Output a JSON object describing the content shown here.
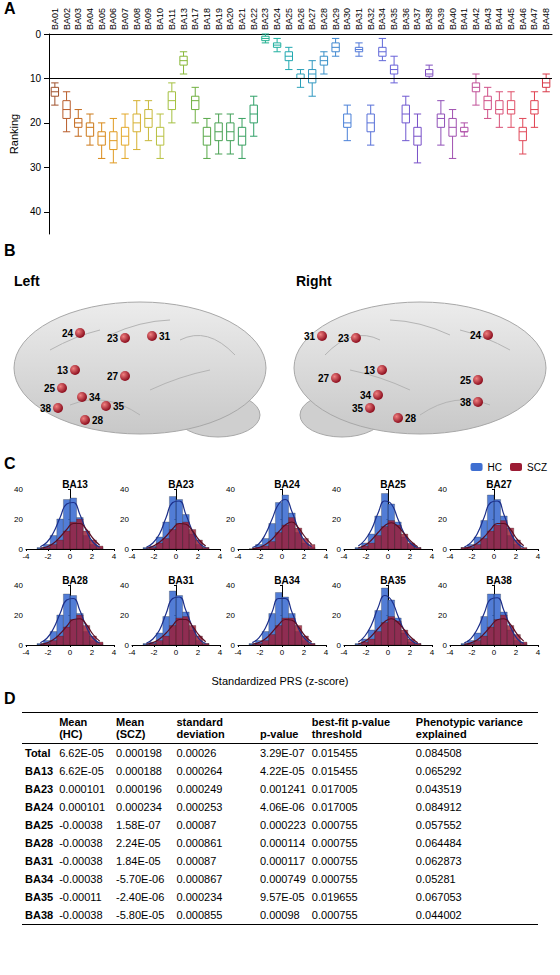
{
  "chart_data": [
    {
      "panel": "A",
      "type": "boxplot",
      "y_label": "Ranking",
      "categories": [
        "BA01",
        "BA02",
        "BA03",
        "BA04",
        "BA05",
        "BA06",
        "BA07",
        "BA08",
        "BA09",
        "BA10",
        "BA11",
        "BA13",
        "BA17",
        "BA18",
        "BA19",
        "BA20",
        "BA21",
        "BA22",
        "BA23",
        "BA24",
        "BA25",
        "BA26",
        "BA27",
        "BA28",
        "BA29",
        "BA30",
        "BA31",
        "BA32",
        "BA34",
        "BA35",
        "BA36",
        "BA37",
        "BA38",
        "BA39",
        "BA40",
        "BA41",
        "BA42",
        "BA43",
        "BA44",
        "BA45",
        "BA46",
        "BA47",
        "BA48"
      ],
      "boxes": [
        [
          11,
          12,
          13,
          14,
          16
        ],
        [
          13,
          15,
          17,
          19,
          22
        ],
        [
          17,
          19,
          20,
          21,
          23
        ],
        [
          18,
          20,
          21,
          23,
          25
        ],
        [
          20,
          22,
          23,
          25,
          28
        ],
        [
          19,
          22,
          24,
          26,
          29
        ],
        [
          18,
          21,
          23,
          25,
          28
        ],
        [
          15,
          18,
          20,
          22,
          26
        ],
        [
          15,
          17,
          19,
          21,
          24
        ],
        [
          18,
          21,
          23,
          25,
          28
        ],
        [
          11,
          13,
          15,
          17,
          20
        ],
        [
          4,
          5,
          6,
          7,
          9
        ],
        [
          12,
          14,
          15,
          17,
          20
        ],
        [
          19,
          21,
          23,
          25,
          28
        ],
        [
          18,
          20,
          22,
          24,
          27
        ],
        [
          18,
          20,
          22,
          24,
          27
        ],
        [
          19,
          21,
          23,
          25,
          28
        ],
        [
          14,
          16,
          18,
          20,
          23
        ],
        [
          0,
          0.5,
          1,
          1.5,
          2
        ],
        [
          1,
          2,
          2.5,
          3,
          4
        ],
        [
          3,
          4,
          5,
          6,
          8
        ],
        [
          8,
          9,
          10,
          10,
          12
        ],
        [
          6,
          8,
          9,
          11,
          14
        ],
        [
          4,
          5,
          6,
          7,
          9
        ],
        [
          1,
          2,
          3,
          4,
          5
        ],
        [
          16,
          18,
          20,
          21,
          24
        ],
        [
          2,
          3,
          3.5,
          4,
          5
        ],
        [
          16,
          18,
          20,
          22,
          25
        ],
        [
          1,
          3,
          4,
          5,
          6
        ],
        [
          5,
          7,
          8,
          9,
          11
        ],
        [
          14,
          16,
          18,
          20,
          24
        ],
        [
          18,
          21,
          23,
          25,
          29
        ],
        [
          7,
          8,
          9,
          9.5,
          10
        ],
        [
          15,
          18,
          19,
          21,
          25
        ],
        [
          17,
          19,
          21,
          23,
          28
        ],
        [
          20,
          21,
          22,
          22,
          23
        ],
        [
          9,
          11,
          12,
          13,
          16
        ],
        [
          12,
          14,
          15,
          17,
          19
        ],
        [
          13,
          15,
          17,
          18,
          21
        ],
        [
          13,
          15,
          17,
          18,
          21
        ],
        [
          19,
          21,
          22,
          24,
          27
        ],
        [
          13,
          15,
          17,
          18,
          21
        ],
        [
          9,
          10,
          11,
          12,
          13
        ]
      ],
      "colors": [
        "#a0522d",
        "#b85c2a",
        "#c46a1e",
        "#cc7a1a",
        "#d98a1a",
        "#e09a20",
        "#e3a828",
        "#d6b030",
        "#c8b83a",
        "#b8c040",
        "#a4c040",
        "#88b838",
        "#70b040",
        "#58a848",
        "#48a050",
        "#40a058",
        "#38a060",
        "#30a068",
        "#20b090",
        "#20b0a0",
        "#20a8b0",
        "#2aa0b8",
        "#3098c0",
        "#3890c8",
        "#4088d0",
        "#4a80d8",
        "#5078d8",
        "#5870d8",
        "#6068d8",
        "#6860d8",
        "#7058d0",
        "#7850c8",
        "#8050c0",
        "#9050b8",
        "#a050b0",
        "#b050a8",
        "#c05098",
        "#d05088",
        "#d85078",
        "#e05068",
        "#e04858",
        "#e04050",
        "#d83848"
      ],
      "ylim": [
        0,
        45
      ],
      "yticks": [
        0,
        10,
        20,
        30,
        40
      ],
      "hline": 10,
      "grid": false
    },
    {
      "panel": "C",
      "type": "histogram",
      "x_label": "Standardized PRS (z-score)",
      "bins": [
        -3,
        -2.4,
        -1.8,
        -1.2,
        -0.6,
        0,
        0.6,
        1.2,
        1.8,
        2.4,
        3
      ],
      "xlim": [
        -4,
        4
      ],
      "xticks": [
        -4,
        -2,
        0,
        2,
        4
      ],
      "ylim": [
        0,
        40
      ],
      "yticks": [
        0,
        20,
        40
      ],
      "legend": "top-right",
      "groups": [
        {
          "name": "HC",
          "color": "#3f6fd1"
        },
        {
          "name": "SCZ",
          "color": "#9c1c34"
        }
      ],
      "panels": [
        {
          "title": "BA13",
          "counts": [
            [
              1,
              3,
              9,
              20,
              33,
              34,
              21,
              9,
              3,
              1
            ],
            [
              0,
              1,
              3,
              6,
              12,
              18,
              20,
              12,
              6,
              2
            ]
          ],
          "fits": [
            [
              1.5,
              4.5,
              11,
              21,
              30,
              31,
              23,
              12,
              4.5,
              1.2
            ],
            [
              0.4,
              1.5,
              3.8,
              8,
              13,
              17,
              17,
              13,
              7,
              2.5
            ]
          ]
        },
        {
          "title": "BA23",
          "counts": [
            [
              1,
              2,
              8,
              18,
              35,
              33,
              23,
              10,
              3,
              1
            ],
            [
              0,
              1,
              4,
              7,
              13,
              17,
              18,
              13,
              6,
              1
            ]
          ],
          "fits": [
            [
              1.2,
              4,
              10,
              21,
              31,
              32,
              23,
              12,
              4,
              1
            ],
            [
              0.5,
              1.8,
              4.5,
              8.5,
              13.5,
              17,
              16.5,
              12,
              6,
              2
            ]
          ]
        },
        {
          "title": "BA24",
          "counts": [
            [
              0,
              3,
              7,
              17,
              31,
              36,
              24,
              11,
              4,
              1
            ],
            [
              0,
              1,
              2,
              5,
              11,
              16,
              21,
              14,
              7,
              3
            ]
          ],
          "fits": [
            [
              1,
              3.5,
              10,
              20,
              30,
              33,
              25,
              13,
              5,
              1.5
            ],
            [
              0.3,
              1,
              3,
              6.5,
              11.5,
              16,
              18,
              14,
              8,
              3
            ]
          ]
        },
        {
          "title": "BA25",
          "counts": [
            [
              1,
              4,
              10,
              22,
              37,
              30,
              18,
              8,
              3,
              1
            ],
            [
              0,
              2,
              4,
              9,
              15,
              19,
              16,
              10,
              4,
              1
            ]
          ],
          "fits": [
            [
              2,
              6,
              13,
              24,
              32,
              30,
              20,
              10,
              3.5,
              1
            ],
            [
              0.8,
              2.5,
              6,
              11,
              15.5,
              17.5,
              15,
              10,
              5,
              1.5
            ]
          ]
        },
        {
          "title": "BA27",
          "counts": [
            [
              1,
              3,
              8,
              19,
              36,
              33,
              22,
              9,
              3,
              0
            ],
            [
              1,
              1,
              3,
              7,
              12,
              16,
              19,
              14,
              6,
              1
            ]
          ],
          "fits": [
            [
              1.3,
              4.2,
              10.5,
              21,
              31,
              32,
              23,
              11,
              4,
              1
            ],
            [
              0.5,
              1.6,
              4,
              8,
              13,
              17,
              17,
              13,
              6.5,
              2.2
            ]
          ]
        },
        {
          "title": "BA28",
          "counts": [
            [
              1,
              3,
              9,
              20,
              34,
              33,
              21,
              9,
              3,
              1
            ],
            [
              0,
              1,
              3,
              6,
              12,
              17,
              20,
              13,
              6,
              2
            ]
          ],
          "fits": [
            [
              1.5,
              4.5,
              11,
              21,
              30,
              31,
              23,
              12,
              4.5,
              1.2
            ],
            [
              0.4,
              1.4,
              3.6,
              7.5,
              12.5,
              17,
              17.5,
              13.5,
              7,
              2.5
            ]
          ]
        },
        {
          "title": "BA31",
          "counts": [
            [
              1,
              2,
              8,
              19,
              36,
              33,
              22,
              10,
              3,
              1
            ],
            [
              0,
              1,
              3,
              6,
              13,
              18,
              19,
              13,
              6,
              1
            ]
          ],
          "fits": [
            [
              1.2,
              4,
              10,
              21,
              31,
              32,
              23,
              12,
              4,
              1
            ],
            [
              0.5,
              1.6,
              4,
              8,
              13,
              17,
              17,
              12.5,
              6.5,
              2.2
            ]
          ]
        },
        {
          "title": "BA34",
          "counts": [
            [
              1,
              3,
              9,
              21,
              35,
              32,
              21,
              9,
              3,
              1
            ],
            [
              0,
              1,
              3,
              7,
              13,
              18,
              18,
              13,
              6,
              1
            ]
          ],
          "fits": [
            [
              1.6,
              4.8,
              11.5,
              22,
              31,
              31,
              22,
              11,
              4,
              1
            ],
            [
              0.5,
              1.7,
              4.2,
              8.5,
              13.5,
              17,
              16.5,
              12,
              6,
              2
            ]
          ]
        },
        {
          "title": "BA35",
          "counts": [
            [
              1,
              4,
              10,
              23,
              38,
              30,
              18,
              8,
              2,
              1
            ],
            [
              0,
              2,
              4,
              9,
              15,
              19,
              16,
              10,
              4,
              1
            ]
          ],
          "fits": [
            [
              2,
              6,
              13.5,
              25,
              33,
              30,
              19.5,
              9.5,
              3.2,
              0.9
            ],
            [
              0.8,
              2.5,
              6,
              11,
              15.5,
              17.5,
              15,
              10,
              5,
              1.5
            ]
          ]
        },
        {
          "title": "BA38",
          "counts": [
            [
              1,
              3,
              8,
              19,
              34,
              34,
              22,
              10,
              3,
              1
            ],
            [
              0,
              1,
              3,
              6,
              12,
              17,
              20,
              13,
              7,
              2
            ]
          ],
          "fits": [
            [
              1.4,
              4.3,
              10.8,
              21,
              30.5,
              31.5,
              23,
              12,
              4.3,
              1.1
            ],
            [
              0.4,
              1.4,
              3.5,
              7.5,
              12.5,
              16.8,
              17.5,
              13.8,
              7.2,
              2.6
            ]
          ]
        }
      ]
    }
  ],
  "brain_figure": {
    "panel": "B",
    "hemispheres": [
      {
        "title": "Left",
        "regions": [
          "24",
          "23",
          "31",
          "13",
          "25",
          "34",
          "27",
          "38",
          "28",
          "35"
        ]
      },
      {
        "title": "Right",
        "regions": [
          "31",
          "23",
          "24",
          "13",
          "27",
          "34",
          "25",
          "35",
          "28",
          "38"
        ]
      }
    ]
  },
  "table": {
    "panel": "D",
    "header": [
      "Mean (HC)",
      "Mean (SCZ)",
      "standard deviation",
      "p-value",
      "best-fit p-value threshold",
      "Phenotypic variance explained"
    ],
    "rows": [
      {
        "label": "Total",
        "cells": [
          "6.62E-05",
          "0.000198",
          "0.00026",
          "3.29E-07",
          "0.015455",
          "0.084508"
        ]
      },
      {
        "label": "BA13",
        "cells": [
          "6.62E-05",
          "0.000188",
          "0.000264",
          "4.22E-05",
          "0.015455",
          "0.065292"
        ]
      },
      {
        "label": "BA23",
        "cells": [
          "0.000101",
          "0.000196",
          "0.000249",
          "0.001241",
          "0.017005",
          "0.043519"
        ]
      },
      {
        "label": "BA24",
        "cells": [
          "0.000101",
          "0.000234",
          "0.000253",
          "4.06E-06",
          "0.017005",
          "0.084912"
        ]
      },
      {
        "label": "BA25",
        "cells": [
          "-0.00038",
          "1.58E-07",
          "0.00087",
          "0.000223",
          "0.000755",
          "0.057552"
        ]
      },
      {
        "label": "BA28",
        "cells": [
          "-0.00038",
          "2.24E-05",
          "0.000861",
          "0.000114",
          "0.000755",
          "0.064484"
        ]
      },
      {
        "label": "BA31",
        "cells": [
          "-0.00038",
          "1.84E-05",
          "0.00087",
          "0.000117",
          "0.000755",
          "0.062873"
        ]
      },
      {
        "label": "BA34",
        "cells": [
          "-0.00038",
          "-5.70E-06",
          "0.000867",
          "0.000749",
          "0.000755",
          "0.05281"
        ]
      },
      {
        "label": "BA35",
        "cells": [
          "-0.00011",
          "-2.40E-06",
          "0.000234",
          "9.57E-05",
          "0.019655",
          "0.067053"
        ]
      },
      {
        "label": "BA38",
        "cells": [
          "-0.00038",
          "-5.80E-05",
          "0.000855",
          "0.00098",
          "0.000755",
          "0.044002"
        ]
      }
    ]
  }
}
